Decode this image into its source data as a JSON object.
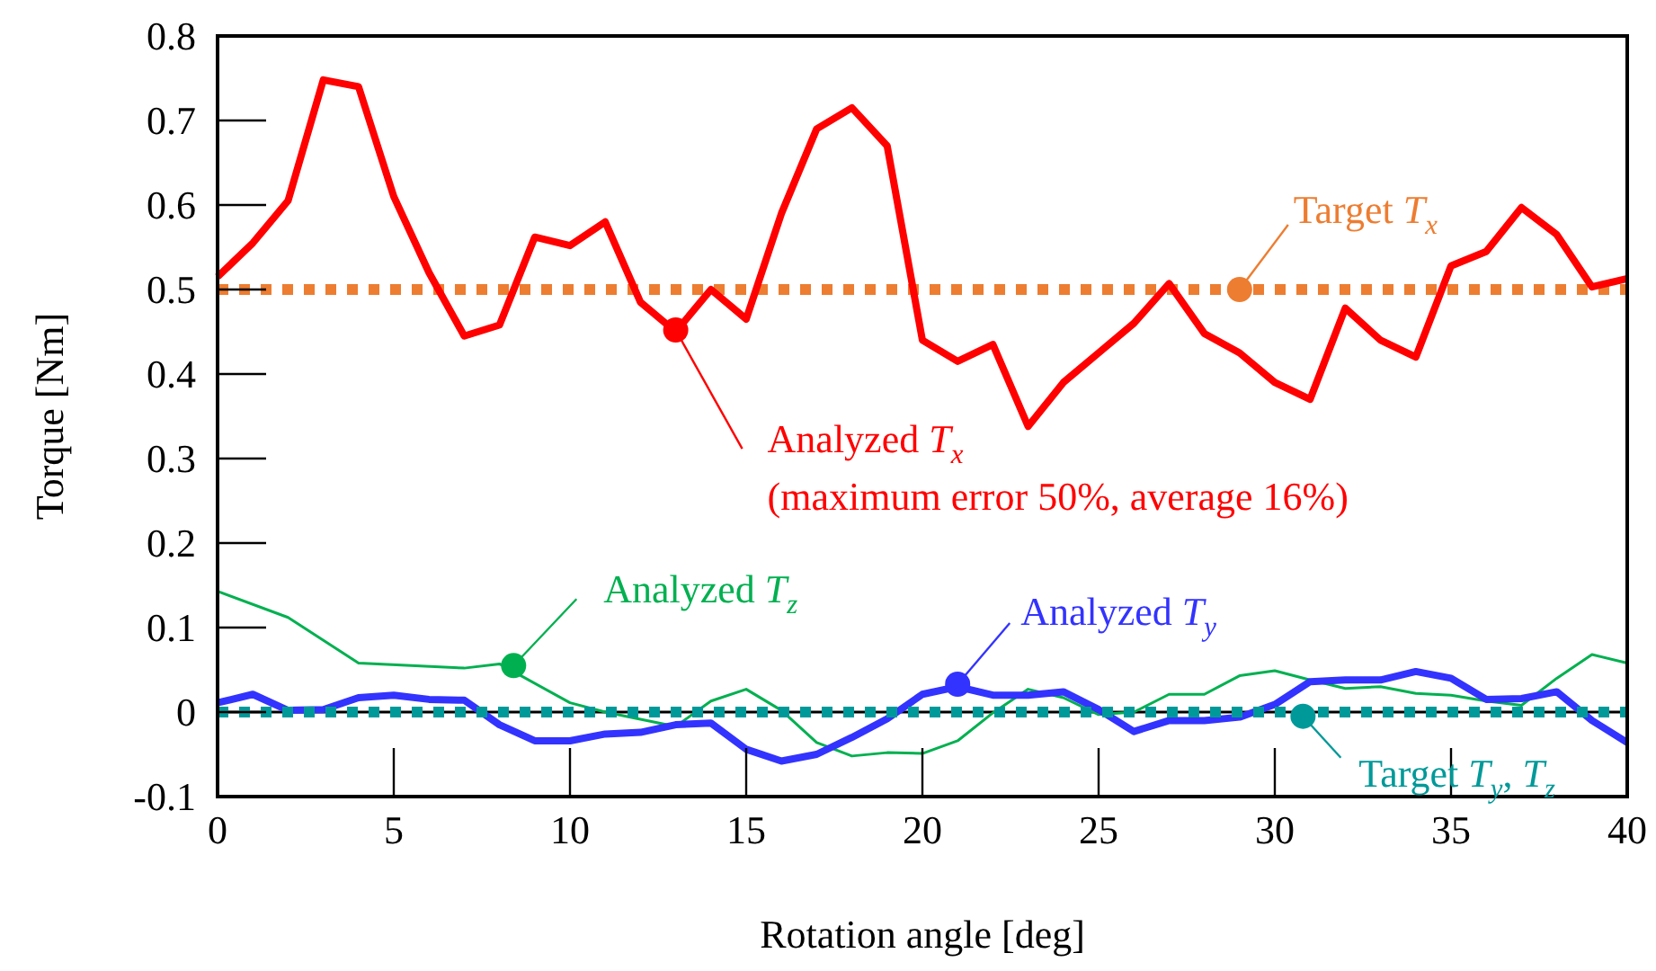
{
  "chart_data": {
    "type": "line",
    "xlabel": "Rotation angle [deg]",
    "ylabel": "Torque [Nm]",
    "xlim": [
      0,
      40
    ],
    "xticks": [
      0,
      5,
      10,
      15,
      20,
      25,
      30,
      35,
      40
    ],
    "ylim": [
      -0.1,
      0.8
    ],
    "yticks": [
      -0.1,
      0,
      0.1,
      0.2,
      0.3,
      0.4,
      0.5,
      0.6,
      0.7,
      0.8
    ],
    "grid": false,
    "marker": "none",
    "ref_lines": [
      {
        "axis": "y",
        "value": 0,
        "color": "#000000"
      }
    ],
    "series": [
      {
        "color": "#00b050",
        "x": [
          0,
          2,
          4,
          7,
          8,
          10,
          11,
          13,
          14,
          15,
          16,
          17,
          18,
          19,
          20,
          21,
          22,
          23,
          24,
          25,
          26,
          27,
          28,
          29,
          30,
          31,
          32,
          33,
          34,
          35,
          36,
          37,
          38,
          39,
          40
        ],
        "values": [
          0.143,
          0.112,
          0.058,
          0.052,
          0.057,
          0.011,
          0,
          -0.017,
          0.013,
          0.027,
          0.002,
          -0.036,
          -0.052,
          -0.048,
          -0.049,
          -0.034,
          -0.001,
          0.027,
          0.017,
          -0.003,
          0,
          0.021,
          0.021,
          0.043,
          0.049,
          0.038,
          0.028,
          0.03,
          0.022,
          0.02,
          0.013,
          0.008,
          0.04,
          0.068,
          0.058
        ],
        "line_style": "solid"
      },
      {
        "color": "#3333ff",
        "x": [
          0,
          1,
          2,
          3,
          4,
          5,
          6,
          7,
          8,
          9,
          10,
          11,
          12,
          13,
          14,
          15,
          16,
          17,
          18,
          19,
          20,
          21,
          22,
          23,
          24,
          25,
          26,
          27,
          28,
          29,
          30,
          31,
          32,
          33,
          34,
          35,
          36,
          37,
          38,
          39,
          40
        ],
        "values": [
          0.011,
          0.021,
          0.002,
          0.003,
          0.017,
          0.02,
          0.015,
          0.014,
          -0.015,
          -0.034,
          -0.034,
          -0.026,
          -0.024,
          -0.015,
          -0.013,
          -0.044,
          -0.058,
          -0.05,
          -0.03,
          -0.008,
          0.021,
          0.03,
          0.02,
          0.02,
          0.024,
          0.003,
          -0.023,
          -0.01,
          -0.01,
          -0.006,
          0.009,
          0.036,
          0.038,
          0.038,
          0.048,
          0.04,
          0.015,
          0.016,
          0.024,
          -0.01,
          -0.036
        ],
        "line_style": "solid"
      },
      {
        "color": "#009999",
        "x": [
          0,
          40
        ],
        "values": [
          0,
          0
        ],
        "line_style": "dotted"
      },
      {
        "color": "#ed7d31",
        "x": [
          0,
          40
        ],
        "values": [
          0.5,
          0.5
        ],
        "line_style": "dotted"
      },
      {
        "color": "#ff0000",
        "x": [
          0,
          1,
          2,
          3,
          4,
          5,
          6,
          7,
          8,
          9,
          10,
          11,
          12,
          13,
          14,
          15,
          16,
          17,
          18,
          19,
          20,
          21,
          22,
          23,
          24,
          25,
          26,
          27,
          28,
          29,
          30,
          31,
          32,
          33,
          34,
          35,
          36,
          37,
          38,
          39,
          40
        ],
        "values": [
          0.515,
          0.555,
          0.605,
          0.748,
          0.74,
          0.61,
          0.52,
          0.445,
          0.458,
          0.562,
          0.552,
          0.58,
          0.485,
          0.45,
          0.5,
          0.465,
          0.59,
          0.69,
          0.715,
          0.67,
          0.44,
          0.415,
          0.435,
          0.338,
          0.39,
          0.425,
          0.46,
          0.507,
          0.448,
          0.425,
          0.39,
          0.37,
          0.478,
          0.44,
          0.42,
          0.528,
          0.545,
          0.597,
          0.565,
          0.503,
          0.513
        ],
        "line_style": "solid"
      }
    ],
    "annotations": [
      {
        "text": "Analyzed T$_{x}$",
        "x": 13,
        "y": 0.452
      },
      "(maximum error 50%, average 16%)",
      {
        "text": "Target T$_{x}$",
        "x": 29,
        "y": 0.5
      },
      {
        "text": "Analyzed T$_{z}$",
        "x": 8.4,
        "y": 0.055
      },
      {
        "text": "Analyzed T$_{y}$",
        "x": 21,
        "y": 0.033
      },
      {
        "text": "Target T$_{y}$, T$_{z}$",
        "x": 30.8,
        "y": -0.005
      }
    ]
  }
}
